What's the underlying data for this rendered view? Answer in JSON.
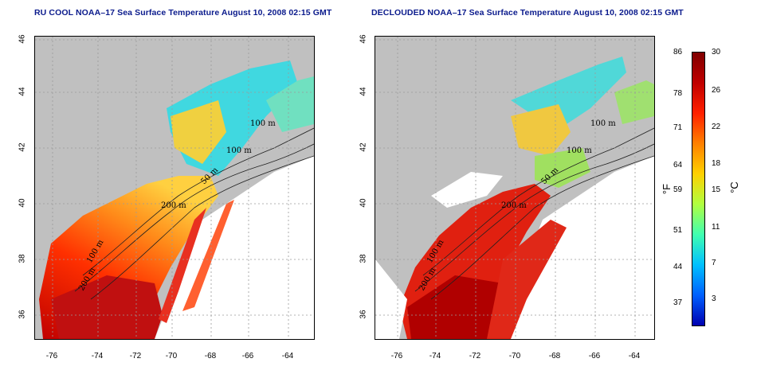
{
  "panels": [
    {
      "title": "RU COOL NOAA–17 Sea Surface Temperature August 10, 2008 02:15 GMT",
      "x_ticks": [
        "-76",
        "-74",
        "-72",
        "-70",
        "-68",
        "-66",
        "-64"
      ],
      "y_ticks": [
        "46",
        "44",
        "42",
        "40",
        "38",
        "36"
      ],
      "contour_labels": [
        "100 m",
        "100 m",
        "50 m",
        "200 m",
        "100 m",
        "200 m"
      ]
    },
    {
      "title": "DECLOUDED NOAA–17 Sea Surface Temperature August 10, 2008 02:15 GMT",
      "x_ticks": [
        "-76",
        "-74",
        "-72",
        "-70",
        "-68",
        "-66",
        "-64"
      ],
      "y_ticks": [
        "46",
        "44",
        "42",
        "40",
        "38",
        "36"
      ],
      "contour_labels": [
        "100 m",
        "100 m",
        "50 m",
        "200 m",
        "100 m",
        "200 m"
      ]
    }
  ],
  "colorbar": {
    "fahrenheit_ticks": [
      "86",
      "78",
      "71",
      "64",
      "59",
      "51",
      "44",
      "37"
    ],
    "celsius_ticks": [
      "30",
      "26",
      "22",
      "18",
      "15",
      "11",
      "7",
      "3"
    ],
    "fahrenheit_unit": "°F",
    "celsius_unit": "°C",
    "colors": [
      "#7f0000",
      "#c00000",
      "#ff2000",
      "#ff8000",
      "#ffd000",
      "#b0ff40",
      "#40ffb0",
      "#00c0ff",
      "#0060ff",
      "#0000b0"
    ]
  },
  "map_colors": {
    "land": "#c0c0c0",
    "ocean_cloud": "#ffffff",
    "grid": "#a0a0a0"
  }
}
